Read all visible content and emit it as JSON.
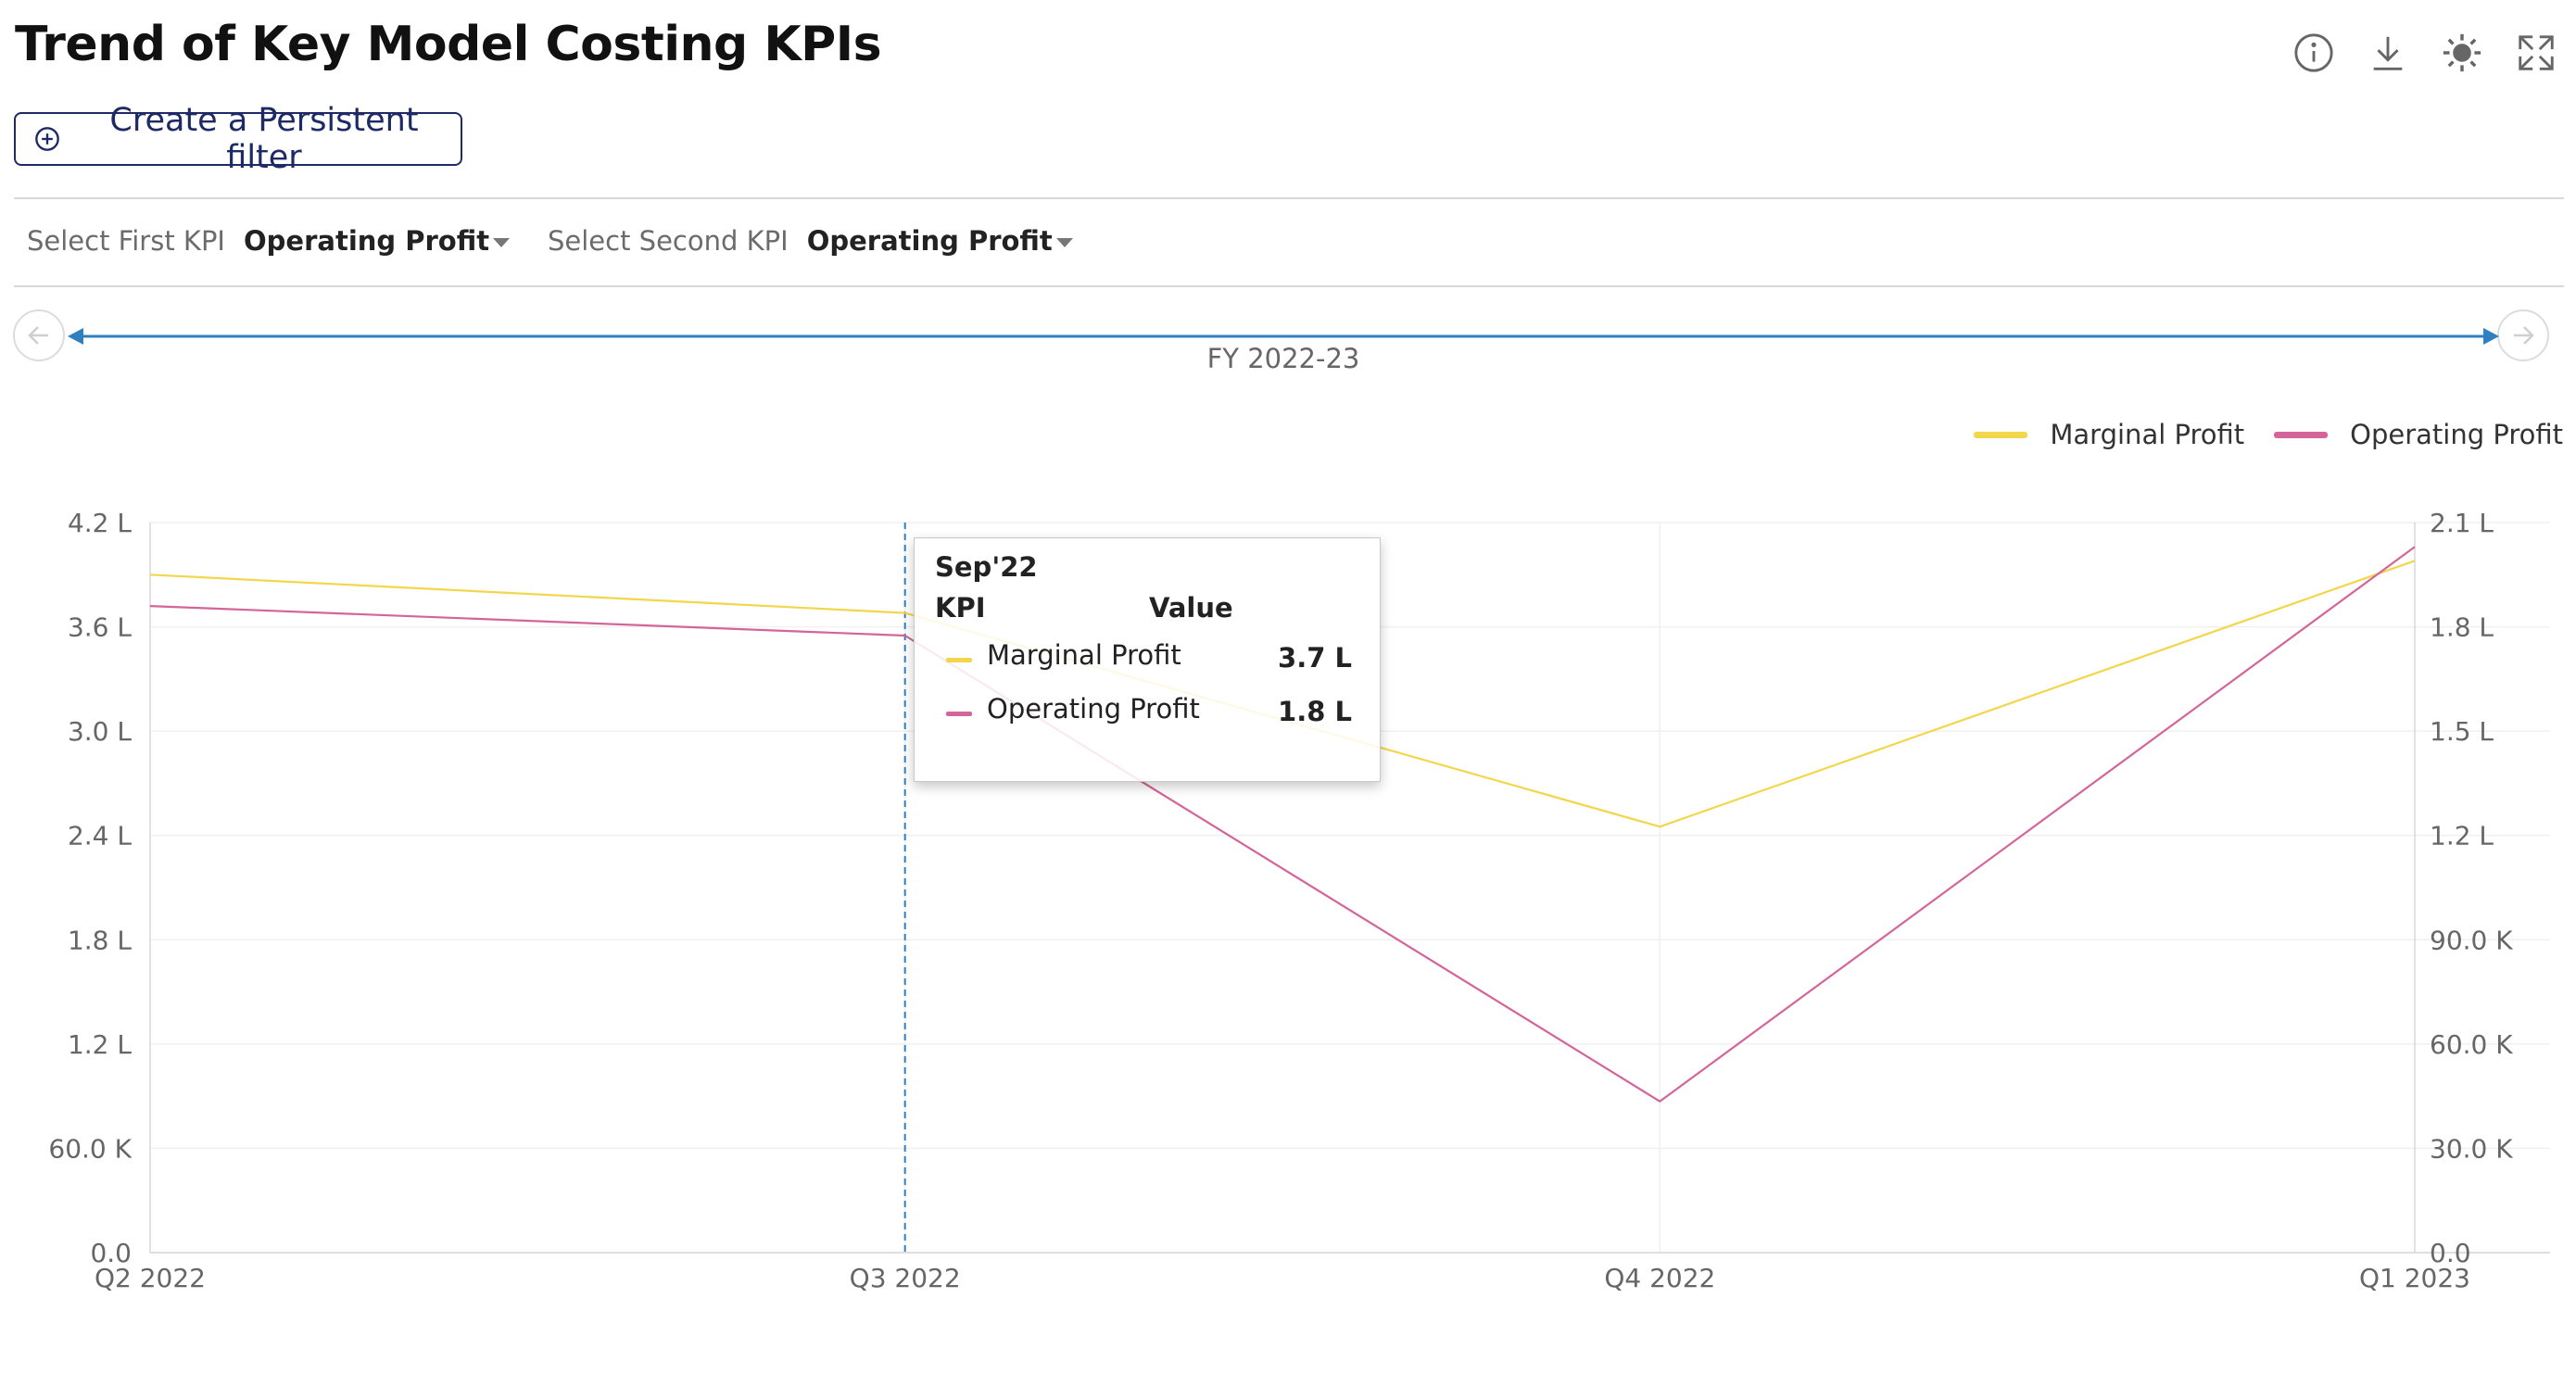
{
  "header": {
    "title": "Trend of Key Model Costing KPIs"
  },
  "toolbar": {
    "icons": [
      "info-icon",
      "download-icon",
      "settings-icon",
      "expand-icon"
    ]
  },
  "filter_button": {
    "label": "Create a Persistent filter",
    "icon": "plus-circle-icon"
  },
  "kpi_selectors": {
    "first": {
      "label": "Select First KPI",
      "value": "Operating Profit"
    },
    "second": {
      "label": "Select Second KPI",
      "value": "Operating Profit"
    }
  },
  "timeline": {
    "label": "FY 2022-23",
    "prev_icon": "arrow-left-icon",
    "next_icon": "arrow-right-icon"
  },
  "tooltip": {
    "title": "Sep'22",
    "kpi_header": "KPI",
    "value_header": "Value",
    "rows": [
      {
        "name": "Marginal Profit",
        "value": "3.7 L",
        "color": "#f2d64b"
      },
      {
        "name": "Operating Profit",
        "value": "1.8 L",
        "color": "#d4659a"
      }
    ]
  },
  "colors": {
    "marginal": "#f2d64b",
    "operating": "#d4659a",
    "accent": "#2f7fc1",
    "title": "#111111",
    "button": "#1e2a66"
  },
  "chart_data": {
    "type": "line",
    "categories": [
      "Q2 2022",
      "Q3 2022",
      "Q4 2022",
      "Q1 2023"
    ],
    "y_left": {
      "ticks": [
        "0.0",
        "60.0 K",
        "1.2 L",
        "1.8 L",
        "2.4 L",
        "3.0 L",
        "3.6 L",
        "4.2 L"
      ],
      "ylim": [
        0,
        420000
      ]
    },
    "y_right": {
      "ticks": [
        "0.0",
        "30.0 K",
        "60.0 K",
        "90.0 K",
        "1.2 L",
        "1.5 L",
        "1.8 L",
        "2.1 L"
      ],
      "ylim": [
        0,
        210000
      ]
    },
    "series": [
      {
        "name": "Marginal Profit",
        "axis": "left",
        "color": "#f2d64b",
        "values": [
          390000,
          368000,
          245000,
          398000
        ]
      },
      {
        "name": "Operating Profit",
        "axis": "right",
        "color": "#d4659a",
        "values": [
          186000,
          177500,
          43500,
          203000
        ]
      }
    ],
    "legend": "top-right",
    "grid": true,
    "highlighted_category": "Q3 2022"
  }
}
